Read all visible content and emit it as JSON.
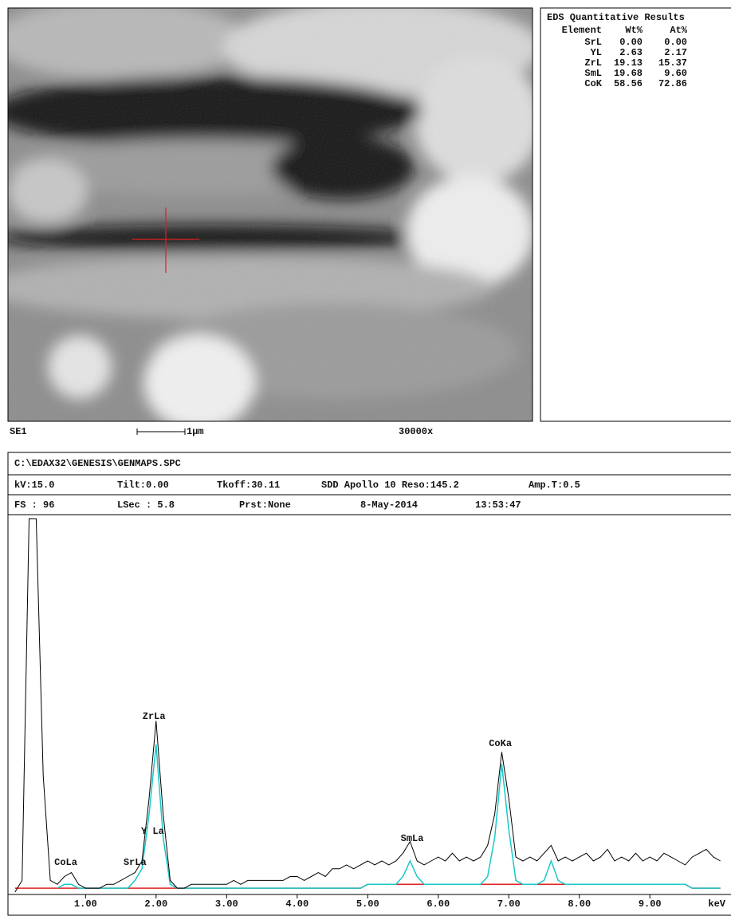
{
  "sem_image": {
    "detector": "SE1",
    "scale_bar": "1µm",
    "magnification": "30000x"
  },
  "results": {
    "title": "EDS Quantitative Results",
    "columns": [
      "Element",
      "Wt%",
      "At%"
    ],
    "rows": [
      [
        "SrL",
        "0.00",
        "0.00"
      ],
      [
        "YL",
        "2.63",
        "2.17"
      ],
      [
        "ZrL",
        "19.13",
        "15.37"
      ],
      [
        "SmL",
        "19.68",
        "9.60"
      ],
      [
        "CoK",
        "58.56",
        "72.86"
      ]
    ]
  },
  "header": {
    "file": "C:\\EDAX32\\GENESIS\\GENMAPS.SPC",
    "row1": [
      "kV:15.0",
      "Tilt:0.00",
      "Tkoff:30.11",
      "SDD Apollo 10 Reso:145.2",
      "Amp.T:0.5"
    ],
    "row2": [
      "FS : 96",
      "LSec : 5.8",
      "Prst:None",
      "8-May-2014",
      "13:53:47"
    ]
  },
  "chart_data": {
    "type": "line",
    "x_label": "keV",
    "x": [
      0,
      0.1,
      0.2,
      0.3,
      0.4,
      0.5,
      0.6,
      0.7,
      0.8,
      0.9,
      1,
      1.1,
      1.2,
      1.3,
      1.4,
      1.5,
      1.6,
      1.7,
      1.8,
      1.9,
      2,
      2.1,
      2.2,
      2.3,
      2.4,
      2.5,
      2.6,
      2.7,
      2.8,
      2.9,
      3,
      3.1,
      3.2,
      3.3,
      3.4,
      3.5,
      3.6,
      3.7,
      3.8,
      3.9,
      4,
      4.1,
      4.2,
      4.3,
      4.4,
      4.5,
      4.6,
      4.7,
      4.8,
      4.9,
      5,
      5.1,
      5.2,
      5.3,
      5.4,
      5.5,
      5.6,
      5.7,
      5.8,
      5.9,
      6,
      6.1,
      6.2,
      6.3,
      6.4,
      6.5,
      6.6,
      6.7,
      6.8,
      6.9,
      7,
      7.1,
      7.2,
      7.3,
      7.4,
      7.5,
      7.6,
      7.7,
      7.8,
      7.9,
      8,
      8.1,
      8.2,
      8.3,
      8.4,
      8.5,
      8.6,
      8.7,
      8.8,
      8.9,
      9,
      9.1,
      9.2,
      9.3,
      9.4,
      9.5,
      9.6,
      9.7,
      9.8,
      9.9,
      10
    ],
    "series": [
      {
        "color": "#000000",
        "values": [
          0,
          3,
          96,
          96,
          30,
          3,
          2,
          4,
          5,
          2,
          1,
          1,
          1,
          2,
          2,
          3,
          4,
          5,
          8,
          24,
          44,
          20,
          3,
          1,
          1,
          2,
          2,
          2,
          2,
          2,
          2,
          3,
          2,
          3,
          3,
          3,
          3,
          3,
          3,
          4,
          4,
          3,
          4,
          5,
          4,
          6,
          6,
          7,
          6,
          7,
          8,
          7,
          8,
          7,
          8,
          10,
          13,
          8,
          7,
          8,
          9,
          8,
          10,
          8,
          9,
          8,
          9,
          12,
          20,
          36,
          24,
          9,
          8,
          9,
          8,
          10,
          12,
          8,
          9,
          8,
          9,
          10,
          8,
          9,
          11,
          8,
          9,
          8,
          10,
          8,
          9,
          8,
          10,
          9,
          8,
          7,
          9,
          10,
          11,
          9,
          8
        ]
      },
      {
        "color": "#19c8c8",
        "values": [
          null,
          null,
          null,
          null,
          null,
          null,
          1,
          2,
          2,
          1,
          1,
          1,
          1,
          1,
          1,
          1,
          1,
          3,
          6,
          20,
          38,
          14,
          2,
          1,
          1,
          1,
          1,
          1,
          1,
          1,
          1,
          1,
          1,
          1,
          1,
          1,
          1,
          1,
          1,
          1,
          1,
          1,
          1,
          1,
          1,
          1,
          1,
          1,
          1,
          1,
          2,
          2,
          2,
          2,
          2,
          4,
          8,
          4,
          2,
          2,
          2,
          2,
          2,
          2,
          2,
          2,
          2,
          4,
          14,
          33,
          16,
          3,
          2,
          2,
          2,
          3,
          8,
          3,
          2,
          2,
          2,
          2,
          2,
          2,
          2,
          2,
          2,
          2,
          2,
          2,
          2,
          2,
          2,
          2,
          2,
          2,
          1,
          1,
          1,
          1,
          1
        ]
      },
      {
        "color": "#e02020",
        "values": [
          1,
          1,
          1,
          1,
          1,
          1,
          1,
          1,
          1,
          1,
          1,
          1,
          1,
          1,
          1,
          1,
          1,
          1,
          1,
          1,
          1,
          1,
          1,
          1,
          1,
          1,
          1,
          1,
          1,
          1,
          1,
          1,
          1,
          1,
          1,
          1,
          1,
          1,
          1,
          1,
          1,
          1,
          1,
          1,
          1,
          1,
          1,
          1,
          1,
          1,
          2,
          2,
          2,
          2,
          2,
          2,
          2,
          2,
          2,
          2,
          2,
          2,
          2,
          2,
          2,
          2,
          2,
          2,
          2,
          2,
          2,
          2,
          2,
          2,
          2,
          2,
          2,
          2,
          2,
          2,
          2,
          2,
          2,
          2,
          2,
          2,
          2,
          2,
          2,
          2,
          2,
          2,
          2,
          2,
          2,
          2,
          1,
          1,
          1,
          1,
          1
        ]
      }
    ],
    "xlim": [
      -0.1,
      10.15
    ],
    "ylim": [
      0,
      96
    ],
    "xticks": [
      {
        "value": 1,
        "label": "1.00"
      },
      {
        "value": 2,
        "label": "2.00"
      },
      {
        "value": 3,
        "label": "3.00"
      },
      {
        "value": 4,
        "label": "4.00"
      },
      {
        "value": 5,
        "label": "5.00"
      },
      {
        "value": 6,
        "label": "6.00"
      },
      {
        "value": 7,
        "label": "7.00"
      },
      {
        "value": 8,
        "label": "8.00"
      },
      {
        "value": 9,
        "label": "9.00"
      }
    ],
    "annotations": [
      {
        "text": "CoLa",
        "x": 0.72
      },
      {
        "text": "SrLa",
        "x": 1.7
      },
      {
        "text": "Y La",
        "x": 1.95
      },
      {
        "text": "ZrLa",
        "x": 1.97
      },
      {
        "text": "SmLa",
        "x": 5.63
      },
      {
        "text": "CoKa",
        "x": 6.88
      }
    ]
  }
}
